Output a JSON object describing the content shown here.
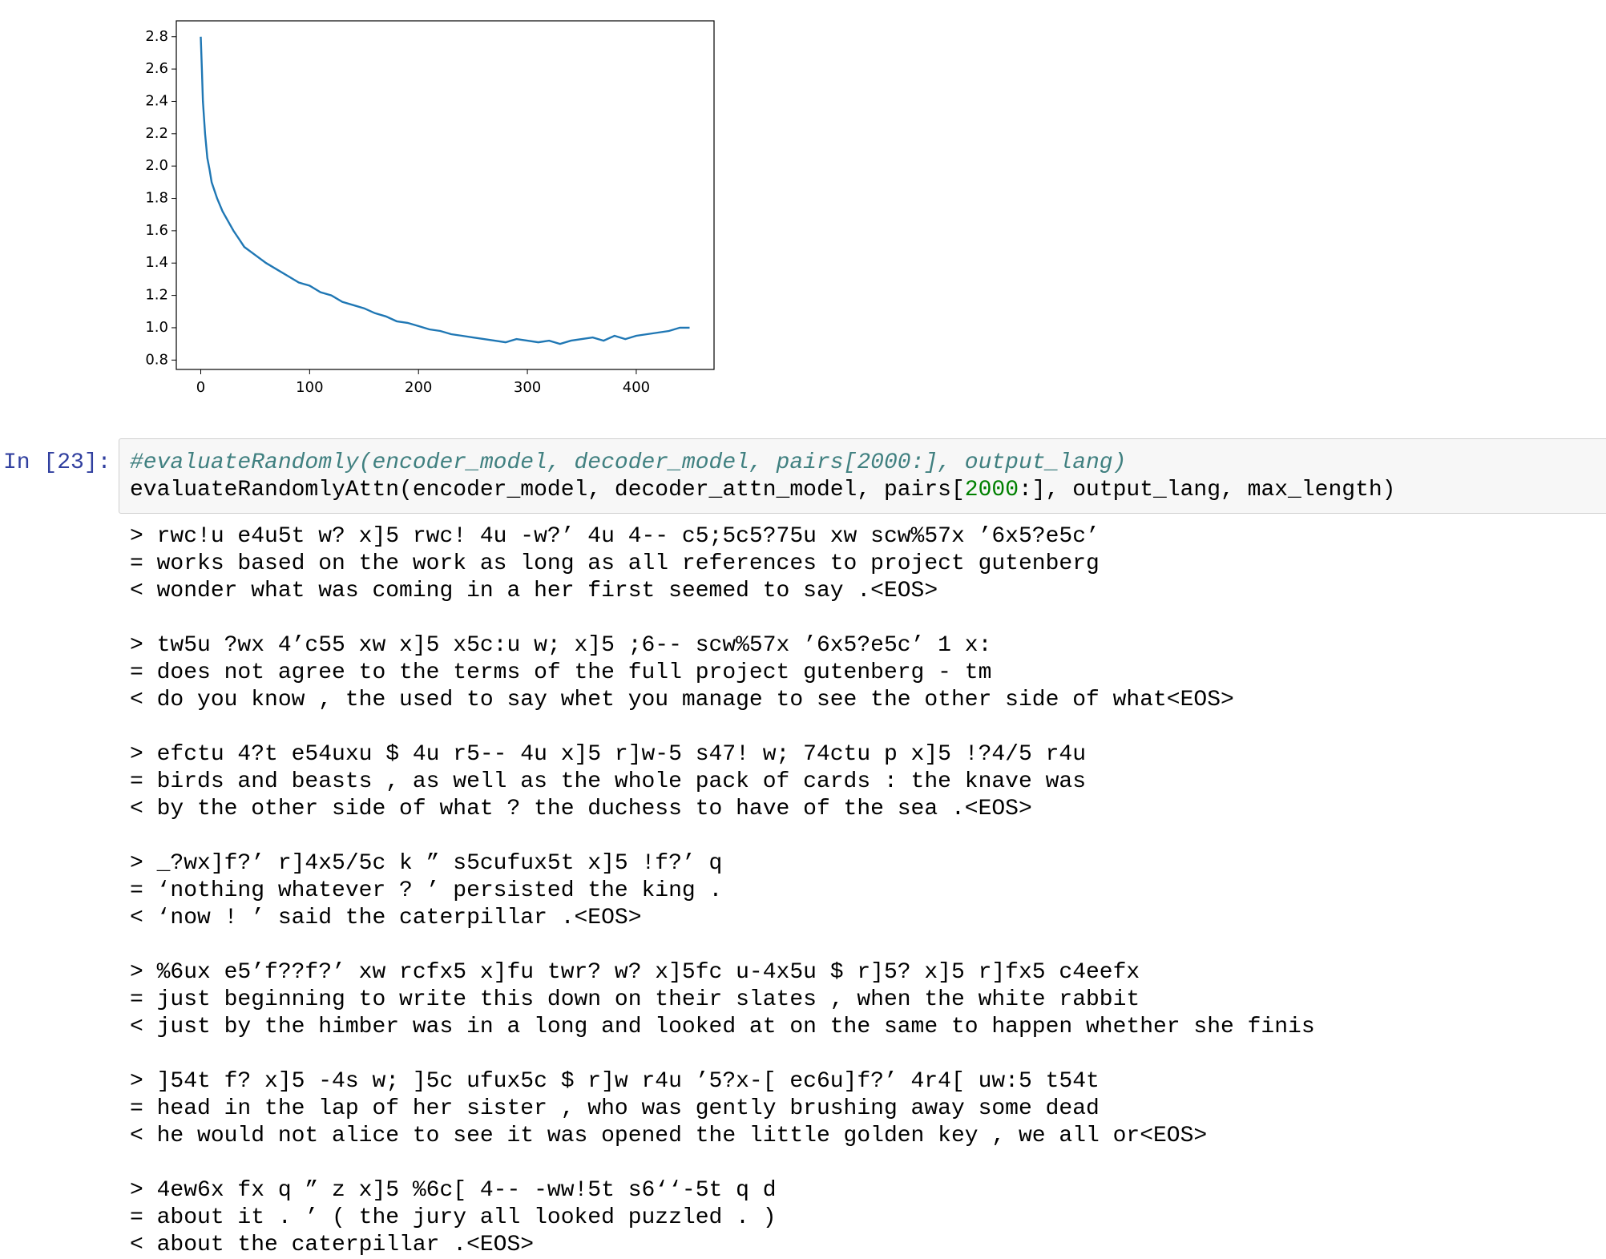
{
  "chart_data": {
    "type": "line",
    "color": "#1f77b4",
    "x": [
      0,
      1,
      2,
      4,
      6,
      8,
      10,
      15,
      20,
      25,
      30,
      35,
      40,
      50,
      60,
      70,
      80,
      90,
      100,
      110,
      120,
      130,
      140,
      150,
      160,
      170,
      180,
      190,
      200,
      210,
      220,
      230,
      240,
      250,
      260,
      270,
      280,
      290,
      300,
      310,
      320,
      330,
      340,
      350,
      360,
      370,
      380,
      390,
      400,
      410,
      420,
      430,
      440,
      449
    ],
    "values": [
      2.8,
      2.6,
      2.4,
      2.2,
      2.05,
      1.98,
      1.9,
      1.8,
      1.72,
      1.66,
      1.6,
      1.55,
      1.5,
      1.45,
      1.4,
      1.36,
      1.32,
      1.28,
      1.26,
      1.22,
      1.2,
      1.16,
      1.14,
      1.12,
      1.09,
      1.07,
      1.04,
      1.03,
      1.01,
      0.99,
      0.98,
      0.96,
      0.95,
      0.94,
      0.93,
      0.92,
      0.91,
      0.93,
      0.92,
      0.91,
      0.92,
      0.9,
      0.92,
      0.93,
      0.94,
      0.92,
      0.95,
      0.93,
      0.95,
      0.96,
      0.97,
      0.98,
      1.0,
      1.0
    ],
    "xlim": [
      -22.45,
      471.45
    ],
    "ylim": [
      0.742,
      2.898
    ],
    "xticks": [
      0,
      100,
      200,
      300,
      400
    ],
    "yticks": [
      0.8,
      {
        "value": 1,
        "label": "1.0"
      },
      1.2,
      1.4,
      1.6,
      1.8,
      {
        "value": 2,
        "label": "2.0"
      },
      2.2,
      2.4,
      2.6,
      2.8
    ]
  },
  "cell": {
    "prompt": "In [23]:",
    "comment": "#evaluateRandomly(encoder_model, decoder_model, pairs[2000:], output_lang)",
    "code": [
      "evaluateRandomlyAttn(encoder_model, decoder_attn_model, pairs[",
      "2000",
      ":], output_lang, max_length)"
    ]
  },
  "output": [
    [
      "> rwc!u e4u5t w? x]5 rwc! 4u -w?’ 4u 4-- c5;5c5?75u xw scw%57x ’6x5?e5c’",
      "= works based on the work as long as all references to project gutenberg",
      "< wonder what was coming in a her first seemed to say .<EOS>"
    ],
    [
      "> tw5u ?wx 4’c55 xw x]5 x5c:u w; x]5 ;6-- scw%57x ’6x5?e5c’ 1 x:",
      "= does not agree to the terms of the full project gutenberg - tm",
      "< do you know , the used to say whet you manage to see the other side of what<EOS>"
    ],
    [
      "> efctu 4?t e54uxu $ 4u r5-- 4u x]5 r]w-5 s47! w; 74ctu p x]5 !?4/5 r4u",
      "= birds and beasts , as well as the whole pack of cards : the knave was",
      "< by the other side of what ? the duchess to have of the sea .<EOS>"
    ],
    [
      "> _?wx]f?’ r]4x5/5c k ” s5cufux5t x]5 !f?’ q",
      "= ‘nothing whatever ? ’ persisted the king .",
      "< ‘now ! ’ said the caterpillar .<EOS>"
    ],
    [
      "> %6ux e5’f??f?’ xw rcfx5 x]fu twr? w? x]5fc u-4x5u $ r]5? x]5 r]fx5 c4eefx",
      "= just beginning to write this down on their slates , when the white rabbit",
      "< just by the himber was in a long and looked at on the same to happen whether she finis"
    ],
    [
      "> ]54t f? x]5 -4s w; ]5c ufux5c $ r]w r4u ’5?x-[ ec6u]f?’ 4r4[ uw:5 t54t",
      "= head in the lap of her sister , who was gently brushing away some dead",
      "< he would not alice to see it was opened the little golden key , we all or<EOS>"
    ],
    [
      "> 4ew6x fx q ” z x]5 %6c[ 4-- -ww!5t s6‘‘-5t q d",
      "= about it . ’ ( the jury all looked puzzled . )",
      "< about the caterpillar .<EOS>"
    ]
  ]
}
